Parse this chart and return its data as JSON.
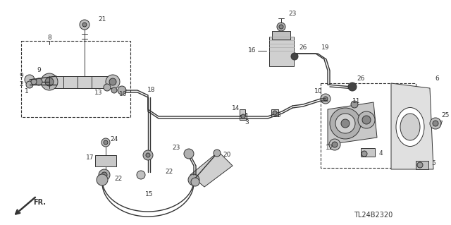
{
  "part_code": "TL24B2320",
  "bg_color": "#ffffff",
  "line_color": "#333333",
  "fig_width": 6.4,
  "fig_height": 3.19
}
